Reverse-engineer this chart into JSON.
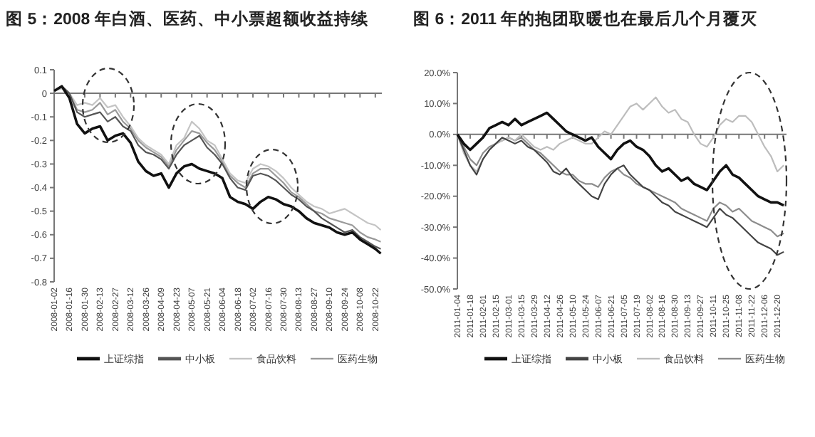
{
  "chart_data": [
    {
      "type": "line",
      "title": "图 5：2008 年白酒、医药、中小票超额收益持续",
      "x": [
        "2008-01-02",
        "2008-01-09",
        "2008-01-16",
        "2008-01-23",
        "2008-01-30",
        "2008-02-06",
        "2008-02-13",
        "2008-02-20",
        "2008-02-27",
        "2008-03-05",
        "2008-03-12",
        "2008-03-19",
        "2008-03-26",
        "2008-04-02",
        "2008-04-09",
        "2008-04-16",
        "2008-04-23",
        "2008-04-30",
        "2008-05-07",
        "2008-05-14",
        "2008-05-21",
        "2008-05-28",
        "2008-06-04",
        "2008-06-11",
        "2008-06-18",
        "2008-06-25",
        "2008-07-02",
        "2008-07-09",
        "2008-07-16",
        "2008-07-23",
        "2008-07-30",
        "2008-08-06",
        "2008-08-13",
        "2008-08-20",
        "2008-08-27",
        "2008-09-03",
        "2008-09-10",
        "2008-09-17",
        "2008-09-24",
        "2008-10-01",
        "2008-10-08",
        "2008-10-15",
        "2008-10-22",
        "2008-10-27"
      ],
      "xlim": [
        "2008-01-02",
        "2008-10-28"
      ],
      "xticks": [
        {
          "value": "2008-01-02",
          "label": "2008-01-02"
        },
        {
          "value": "2008-01-16",
          "label": "2008-01-16"
        },
        {
          "value": "2008-01-30",
          "label": "2008-01-30"
        },
        {
          "value": "2008-02-13",
          "label": "2008-02-13"
        },
        {
          "value": "2008-02-27",
          "label": "2008-02-27"
        },
        {
          "value": "2008-03-12",
          "label": "2008-03-12"
        },
        {
          "value": "2008-03-26",
          "label": "2008-03-26"
        },
        {
          "value": "2008-04-09",
          "label": "2008-04-09"
        },
        {
          "value": "2008-04-23",
          "label": "2008-04-23"
        },
        {
          "value": "2008-05-07",
          "label": "2008-05-07"
        },
        {
          "value": "2008-05-21",
          "label": "2008-05-21"
        },
        {
          "value": "2008-06-04",
          "label": "2008-06-04"
        },
        {
          "value": "2008-06-18",
          "label": "2008-06-18"
        },
        {
          "value": "2008-07-02",
          "label": "2008-07-02"
        },
        {
          "value": "2008-07-16",
          "label": "2008-07-16"
        },
        {
          "value": "2008-07-30",
          "label": "2008-07-30"
        },
        {
          "value": "2008-08-13",
          "label": "2008-08-13"
        },
        {
          "value": "2008-08-27",
          "label": "2008-08-27"
        },
        {
          "value": "2008-09-10",
          "label": "2008-09-10"
        },
        {
          "value": "2008-09-24",
          "label": "2008-09-24"
        },
        {
          "value": "2008-10-08",
          "label": "2008-10-08"
        },
        {
          "value": "2008-10-22",
          "label": "2008-10-22"
        }
      ],
      "ylim": [
        -0.8,
        0.1
      ],
      "yticks": [
        0.1,
        0,
        -0.1,
        -0.2,
        -0.3,
        -0.4,
        -0.5,
        -0.6,
        -0.7,
        -0.8
      ],
      "legend": "bottom",
      "series": [
        {
          "name": "上证综指",
          "color": "#111111",
          "values": [
            0.01,
            0.03,
            -0.02,
            -0.13,
            -0.17,
            -0.15,
            -0.14,
            -0.2,
            -0.18,
            -0.17,
            -0.21,
            -0.29,
            -0.33,
            -0.35,
            -0.34,
            -0.4,
            -0.34,
            -0.31,
            -0.3,
            -0.32,
            -0.33,
            -0.34,
            -0.36,
            -0.44,
            -0.46,
            -0.47,
            -0.49,
            -0.46,
            -0.44,
            -0.45,
            -0.47,
            -0.48,
            -0.5,
            -0.53,
            -0.55,
            -0.56,
            -0.57,
            -0.59,
            -0.6,
            -0.59,
            -0.62,
            -0.64,
            -0.66,
            -0.68
          ]
        },
        {
          "name": "中小板",
          "color": "#555555",
          "values": [
            0.01,
            0.03,
            0.0,
            -0.08,
            -0.1,
            -0.09,
            -0.08,
            -0.12,
            -0.1,
            -0.14,
            -0.16,
            -0.22,
            -0.25,
            -0.26,
            -0.28,
            -0.32,
            -0.26,
            -0.22,
            -0.2,
            -0.18,
            -0.23,
            -0.26,
            -0.3,
            -0.36,
            -0.4,
            -0.41,
            -0.35,
            -0.34,
            -0.35,
            -0.37,
            -0.4,
            -0.43,
            -0.45,
            -0.48,
            -0.5,
            -0.53,
            -0.55,
            -0.57,
            -0.59,
            -0.58,
            -0.61,
            -0.63,
            -0.65,
            -0.66
          ]
        },
        {
          "name": "食品饮料",
          "color": "#c4c4c4",
          "values": [
            0.01,
            0.02,
            0.0,
            -0.05,
            -0.04,
            -0.05,
            -0.02,
            -0.06,
            -0.05,
            -0.1,
            -0.14,
            -0.19,
            -0.22,
            -0.24,
            -0.26,
            -0.3,
            -0.22,
            -0.19,
            -0.12,
            -0.15,
            -0.2,
            -0.22,
            -0.28,
            -0.34,
            -0.37,
            -0.38,
            -0.32,
            -0.3,
            -0.31,
            -0.33,
            -0.36,
            -0.4,
            -0.43,
            -0.46,
            -0.48,
            -0.49,
            -0.51,
            -0.5,
            -0.49,
            -0.51,
            -0.53,
            -0.55,
            -0.56,
            -0.58
          ]
        },
        {
          "name": "医药生物",
          "color": "#9a9a9a",
          "values": [
            0.01,
            0.03,
            0.0,
            -0.07,
            -0.08,
            -0.07,
            -0.04,
            -0.09,
            -0.07,
            -0.12,
            -0.15,
            -0.2,
            -0.23,
            -0.25,
            -0.27,
            -0.31,
            -0.24,
            -0.2,
            -0.16,
            -0.17,
            -0.21,
            -0.24,
            -0.29,
            -0.35,
            -0.38,
            -0.4,
            -0.34,
            -0.32,
            -0.32,
            -0.35,
            -0.38,
            -0.42,
            -0.44,
            -0.47,
            -0.5,
            -0.51,
            -0.53,
            -0.54,
            -0.55,
            -0.56,
            -0.59,
            -0.61,
            -0.62,
            -0.63
          ]
        }
      ]
    },
    {
      "type": "line",
      "title": "图 6：2011 年的抱团取暖也在最后几个月覆灭",
      "x": [
        "2011-01-04",
        "2011-01-11",
        "2011-01-18",
        "2011-01-25",
        "2011-02-01",
        "2011-02-08",
        "2011-02-15",
        "2011-02-22",
        "2011-03-01",
        "2011-03-08",
        "2011-03-15",
        "2011-03-22",
        "2011-03-29",
        "2011-04-05",
        "2011-04-12",
        "2011-04-19",
        "2011-04-26",
        "2011-05-03",
        "2011-05-10",
        "2011-05-17",
        "2011-05-24",
        "2011-05-31",
        "2011-06-07",
        "2011-06-14",
        "2011-06-21",
        "2011-06-28",
        "2011-07-05",
        "2011-07-12",
        "2011-07-19",
        "2011-07-26",
        "2011-08-02",
        "2011-08-09",
        "2011-08-16",
        "2011-08-23",
        "2011-08-30",
        "2011-09-06",
        "2011-09-13",
        "2011-09-20",
        "2011-09-27",
        "2011-10-04",
        "2011-10-11",
        "2011-10-18",
        "2011-10-25",
        "2011-11-01",
        "2011-11-08",
        "2011-11-15",
        "2011-11-22",
        "2011-11-29",
        "2011-12-06",
        "2011-12-13",
        "2011-12-20",
        "2011-12-27"
      ],
      "xlim": [
        "2011-01-04",
        "2011-12-30"
      ],
      "xticks": [
        {
          "value": "2011-01-04",
          "label": "2011-01-04"
        },
        {
          "value": "2011-01-18",
          "label": "2011-01-18"
        },
        {
          "value": "2011-02-01",
          "label": "2011-02-01"
        },
        {
          "value": "2011-02-15",
          "label": "2011-02-15"
        },
        {
          "value": "2011-03-01",
          "label": "2011-03-01"
        },
        {
          "value": "2011-03-15",
          "label": "2011-03-15"
        },
        {
          "value": "2011-03-29",
          "label": "2011-03-29"
        },
        {
          "value": "2011-04-12",
          "label": "2011-04-12"
        },
        {
          "value": "2011-04-26",
          "label": "2011-04-26"
        },
        {
          "value": "2011-05-10",
          "label": "2011-05-10"
        },
        {
          "value": "2011-05-24",
          "label": "2011-05-24"
        },
        {
          "value": "2011-06-07",
          "label": "2011-06-07"
        },
        {
          "value": "2011-06-21",
          "label": "2011-06-21"
        },
        {
          "value": "2011-07-05",
          "label": "2011-07-05"
        },
        {
          "value": "2011-07-19",
          "label": "2011-07-19"
        },
        {
          "value": "2011-08-02",
          "label": "2011-08-02"
        },
        {
          "value": "2011-08-16",
          "label": "2011-08-16"
        },
        {
          "value": "2011-08-30",
          "label": "2011-08-30"
        },
        {
          "value": "2011-09-13",
          "label": "2011-09-13"
        },
        {
          "value": "2011-09-27",
          "label": "2011-09-27"
        },
        {
          "value": "2011-10-11",
          "label": "2011-10-11"
        },
        {
          "value": "2011-10-25",
          "label": "2011-10-25"
        },
        {
          "value": "2011-11-08",
          "label": "2011-11-08"
        },
        {
          "value": "2011-11-22",
          "label": "2011-11-22"
        },
        {
          "value": "2011-12-06",
          "label": "2011-12-06"
        },
        {
          "value": "2011-12-20",
          "label": "2011-12-20"
        }
      ],
      "ylim": [
        -50,
        20
      ],
      "yticks": [
        {
          "value": 20,
          "label": "20.0%"
        },
        {
          "value": 10,
          "label": "10.0%"
        },
        {
          "value": 0,
          "label": "0.0%"
        },
        {
          "value": -10,
          "label": "-10.0%"
        },
        {
          "value": -20,
          "label": "-20.0%"
        },
        {
          "value": -30,
          "label": "-30.0%"
        },
        {
          "value": -40,
          "label": "-40.0%"
        },
        {
          "value": -50,
          "label": "-50.0%"
        }
      ],
      "legend": "bottom",
      "series": [
        {
          "name": "上证综指",
          "color": "#111111",
          "values": [
            0,
            -3,
            -5,
            -3,
            -1,
            2,
            3,
            4,
            3,
            5,
            3,
            4,
            5,
            6,
            7,
            5,
            3,
            1,
            0,
            -1,
            -2,
            -1,
            -4,
            -6,
            -8,
            -5,
            -3,
            -2,
            -4,
            -5,
            -7,
            -10,
            -12,
            -11,
            -13,
            -15,
            -14,
            -16,
            -17,
            -18,
            -15,
            -12,
            -10,
            -13,
            -14,
            -16,
            -18,
            -20,
            -21,
            -22,
            -22,
            -23
          ]
        },
        {
          "name": "中小板",
          "color": "#444444",
          "values": [
            0,
            -5,
            -10,
            -13,
            -8,
            -5,
            -3,
            -1,
            -2,
            -3,
            -2,
            -4,
            -5,
            -7,
            -9,
            -12,
            -13,
            -11,
            -14,
            -16,
            -18,
            -20,
            -21,
            -16,
            -13,
            -11,
            -10,
            -13,
            -15,
            -17,
            -18,
            -20,
            -22,
            -23,
            -25,
            -26,
            -27,
            -28,
            -29,
            -30,
            -27,
            -24,
            -26,
            -27,
            -29,
            -31,
            -33,
            -35,
            -36,
            -37,
            -39,
            -38
          ]
        },
        {
          "name": "食品饮料",
          "color": "#bdbdbd",
          "values": [
            0,
            -6,
            -10,
            -12,
            -8,
            -5,
            -3,
            -2,
            -1,
            -2,
            0,
            -2,
            -4,
            -5,
            -4,
            -5,
            -3,
            -2,
            -1,
            -2,
            -3,
            -3,
            -1,
            1,
            0,
            3,
            6,
            9,
            10,
            8,
            10,
            12,
            9,
            7,
            8,
            5,
            4,
            0,
            -3,
            -4,
            -1,
            3,
            5,
            4,
            6,
            6,
            4,
            0,
            -4,
            -7,
            -12,
            -10
          ]
        },
        {
          "name": "医药生物",
          "color": "#8c8c8c",
          "values": [
            0,
            -4,
            -8,
            -10,
            -6,
            -4,
            -3,
            -2,
            -1,
            -2,
            -1,
            -3,
            -5,
            -6,
            -8,
            -10,
            -12,
            -13,
            -13,
            -15,
            -16,
            -16,
            -17,
            -14,
            -12,
            -11,
            -13,
            -14,
            -16,
            -17,
            -18,
            -19,
            -20,
            -21,
            -22,
            -24,
            -25,
            -26,
            -27,
            -28,
            -24,
            -22,
            -23,
            -25,
            -24,
            -26,
            -28,
            -29,
            -30,
            -31,
            -33,
            -32
          ]
        }
      ]
    }
  ]
}
